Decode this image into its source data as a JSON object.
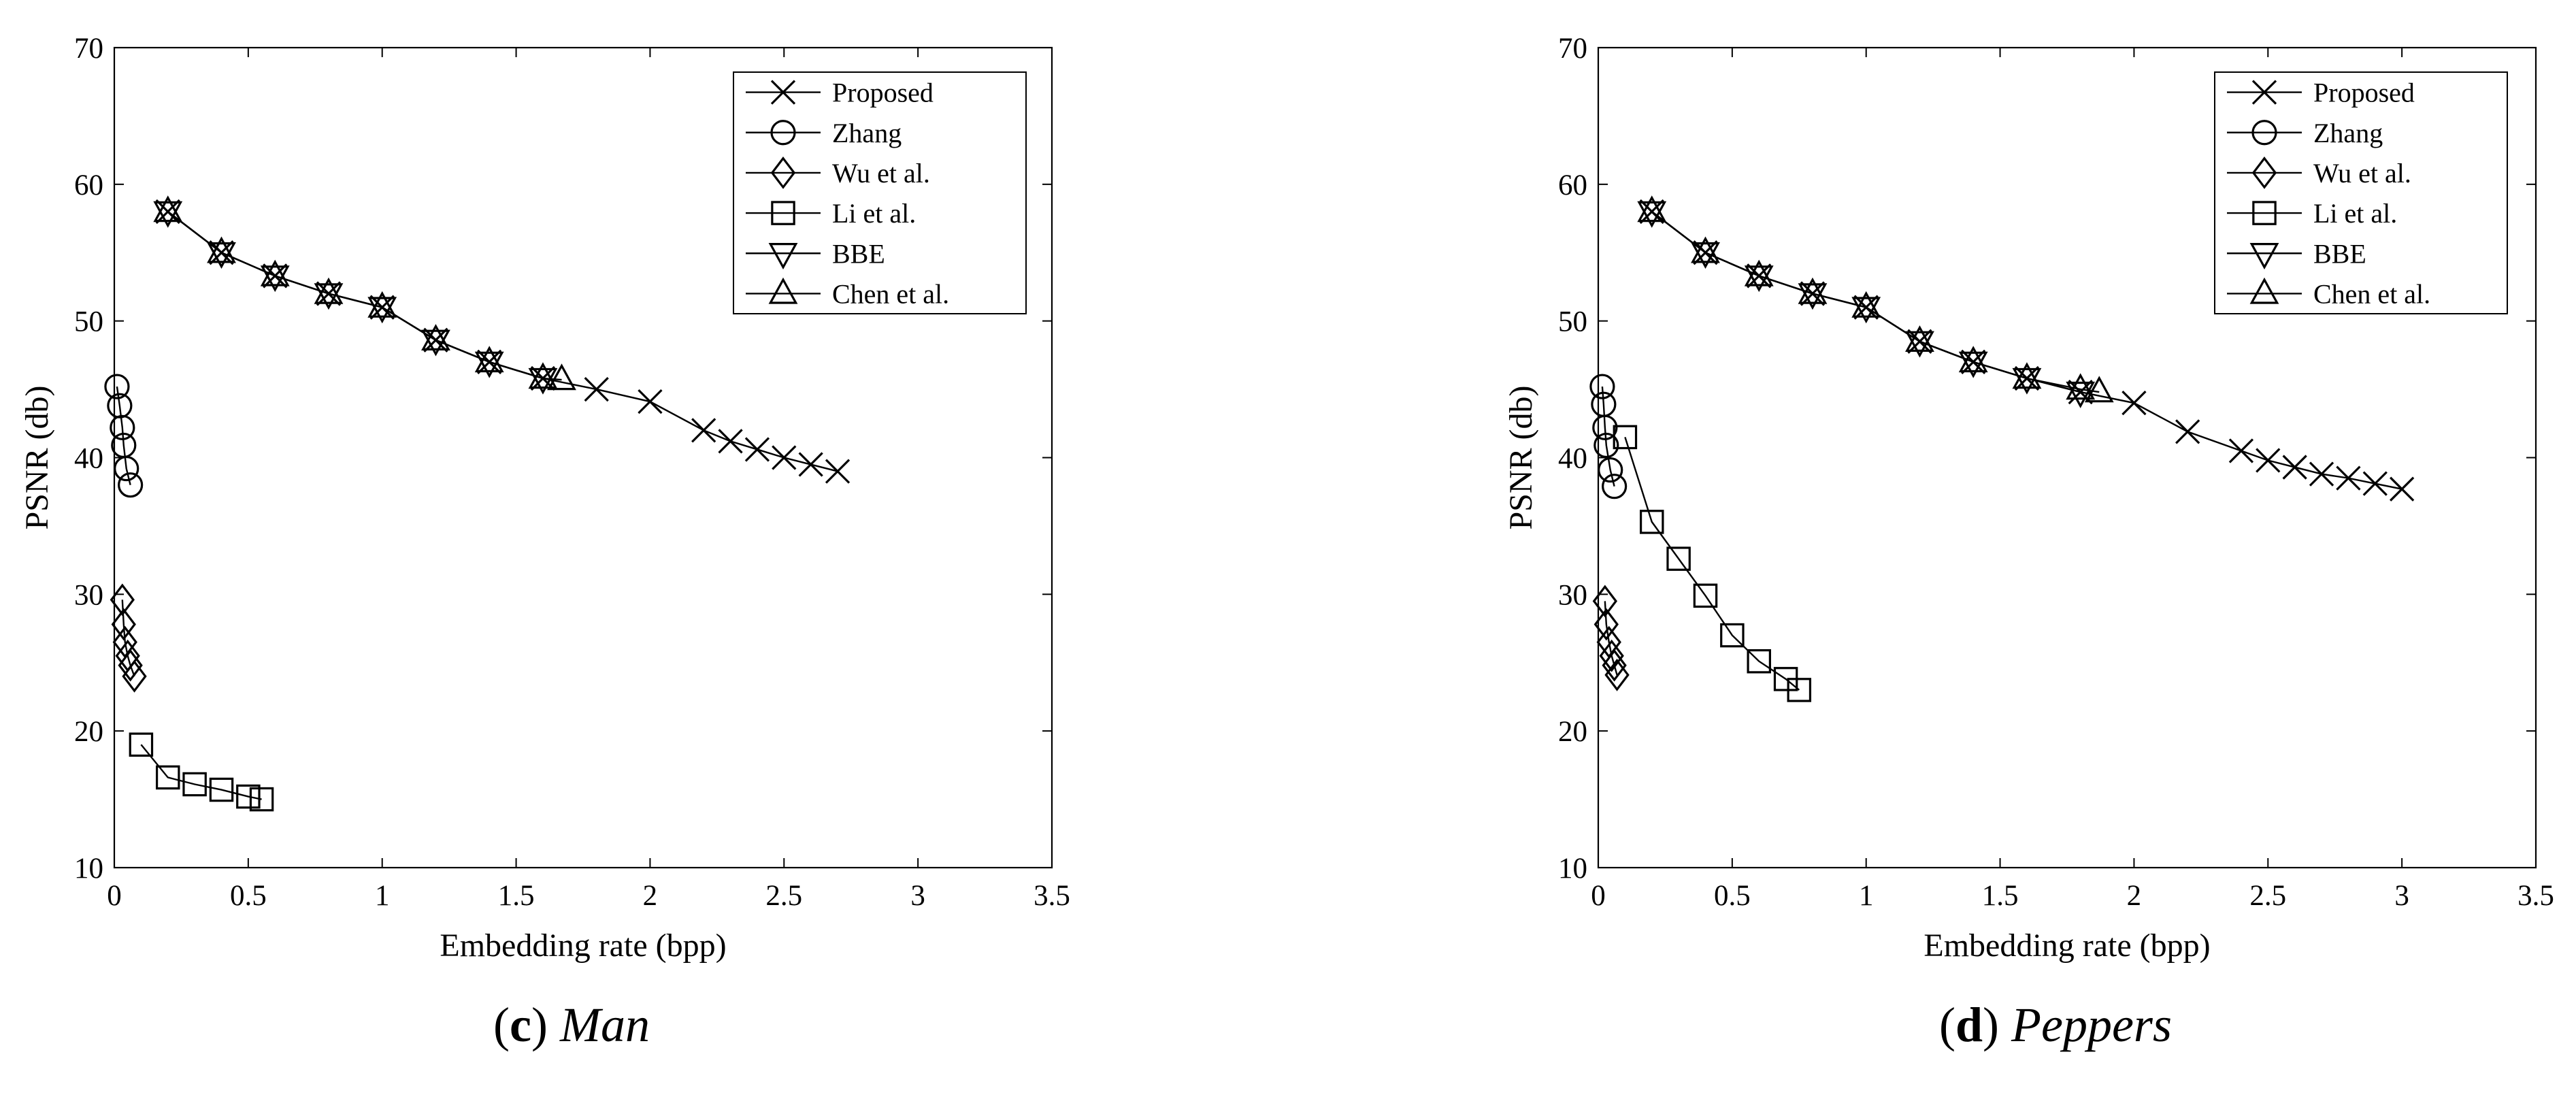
{
  "chart_data": [
    {
      "type": "line",
      "caption": {
        "letter": "c",
        "name": "Man"
      },
      "xlabel": "Embedding rate (bpp)",
      "ylabel": "PSNR (db)",
      "xlim": [
        0,
        3.5
      ],
      "ylim": [
        10,
        70
      ],
      "xticks": [
        "0",
        "0.5",
        "1",
        "1.5",
        "2",
        "2.5",
        "3",
        "3.5"
      ],
      "yticks": [
        "10",
        "20",
        "30",
        "40",
        "50",
        "60",
        "70"
      ],
      "legend_position": "top-right",
      "grid": false,
      "series": [
        {
          "name": "Proposed",
          "marker": "x",
          "x": [
            0.2,
            0.4,
            0.6,
            0.8,
            1.0,
            1.2,
            1.4,
            1.6,
            1.8,
            2.0,
            2.2,
            2.3,
            2.4,
            2.5,
            2.6,
            2.7
          ],
          "y": [
            58.0,
            55.0,
            53.3,
            52.0,
            51.0,
            48.6,
            47.0,
            45.8,
            45.0,
            44.1,
            42.0,
            41.2,
            40.6,
            40.0,
            39.5,
            39.0
          ]
        },
        {
          "name": "Zhang",
          "marker": "circle",
          "x": [
            0.01,
            0.02,
            0.03,
            0.035,
            0.045,
            0.06
          ],
          "y": [
            45.2,
            43.8,
            42.2,
            40.9,
            39.2,
            38.0
          ]
        },
        {
          "name": "Wu et al.",
          "marker": "diamond",
          "x": [
            0.03,
            0.035,
            0.04,
            0.05,
            0.06,
            0.075
          ],
          "y": [
            29.6,
            27.8,
            26.5,
            25.5,
            24.8,
            24.0
          ]
        },
        {
          "name": "Li et al.",
          "marker": "square",
          "x": [
            0.1,
            0.2,
            0.3,
            0.4,
            0.5,
            0.55
          ],
          "y": [
            19.0,
            16.6,
            16.1,
            15.7,
            15.2,
            15.0
          ]
        },
        {
          "name": "BBE",
          "marker": "triangle-down",
          "x": [
            0.2,
            0.4,
            0.6,
            0.8,
            1.0,
            1.2,
            1.4,
            1.6
          ],
          "y": [
            58.0,
            55.0,
            53.3,
            52.0,
            51.0,
            48.6,
            47.0,
            45.8
          ]
        },
        {
          "name": "Chen et al.",
          "marker": "triangle-up",
          "x": [
            0.2,
            0.4,
            0.6,
            0.8,
            1.0,
            1.2,
            1.4,
            1.6,
            1.67
          ],
          "y": [
            58.0,
            55.0,
            53.3,
            52.0,
            51.0,
            48.6,
            47.0,
            45.8,
            45.7
          ]
        }
      ]
    },
    {
      "type": "line",
      "caption": {
        "letter": "d",
        "name": "Peppers"
      },
      "xlabel": "Embedding rate (bpp)",
      "ylabel": "PSNR (db)",
      "xlim": [
        0,
        3.5
      ],
      "ylim": [
        10,
        70
      ],
      "xticks": [
        "0",
        "0.5",
        "1",
        "1.5",
        "2",
        "2.5",
        "3",
        "3.5"
      ],
      "yticks": [
        "10",
        "20",
        "30",
        "40",
        "50",
        "60",
        "70"
      ],
      "legend_position": "top-right",
      "grid": false,
      "series": [
        {
          "name": "Proposed",
          "marker": "x",
          "x": [
            0.2,
            0.4,
            0.6,
            0.8,
            1.0,
            1.2,
            1.4,
            1.6,
            1.8,
            2.0,
            2.2,
            2.4,
            2.5,
            2.6,
            2.7,
            2.8,
            2.9,
            3.0
          ],
          "y": [
            58.0,
            55.0,
            53.3,
            52.0,
            51.0,
            48.5,
            47.0,
            45.8,
            44.8,
            44.0,
            41.9,
            40.5,
            39.8,
            39.3,
            38.8,
            38.5,
            38.1,
            37.7
          ]
        },
        {
          "name": "Zhang",
          "marker": "circle",
          "x": [
            0.015,
            0.02,
            0.025,
            0.03,
            0.045,
            0.06
          ],
          "y": [
            45.2,
            43.9,
            42.2,
            40.9,
            39.1,
            37.9
          ]
        },
        {
          "name": "Wu et al.",
          "marker": "diamond",
          "x": [
            0.025,
            0.03,
            0.04,
            0.05,
            0.06,
            0.07
          ],
          "y": [
            29.5,
            27.8,
            26.5,
            25.5,
            24.8,
            24.1
          ]
        },
        {
          "name": "Li et al.",
          "marker": "square",
          "x": [
            0.1,
            0.2,
            0.3,
            0.4,
            0.5,
            0.6,
            0.7,
            0.75
          ],
          "y": [
            41.5,
            35.3,
            32.6,
            29.9,
            27.0,
            25.1,
            23.8,
            23.0
          ]
        },
        {
          "name": "BBE",
          "marker": "triangle-down",
          "x": [
            0.2,
            0.4,
            0.6,
            0.8,
            1.0,
            1.2,
            1.4,
            1.6,
            1.8
          ],
          "y": [
            58.0,
            55.0,
            53.3,
            52.0,
            51.0,
            48.5,
            47.0,
            45.8,
            44.8
          ]
        },
        {
          "name": "Chen et al.",
          "marker": "triangle-up",
          "x": [
            0.2,
            0.4,
            0.6,
            0.8,
            1.0,
            1.2,
            1.4,
            1.6,
            1.8,
            1.87
          ],
          "y": [
            58.0,
            55.0,
            53.3,
            52.0,
            51.0,
            48.5,
            47.0,
            45.8,
            45.0,
            44.8
          ]
        }
      ]
    }
  ]
}
